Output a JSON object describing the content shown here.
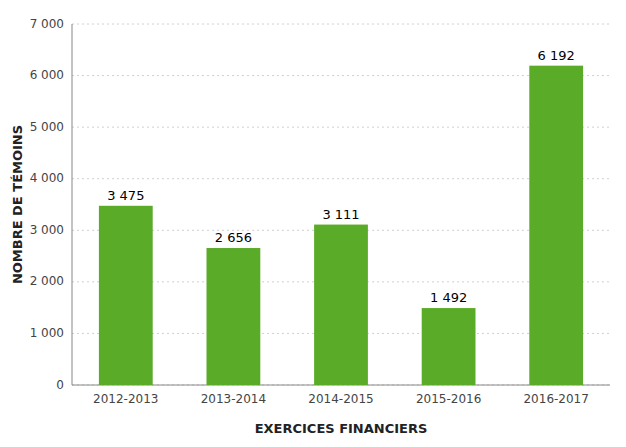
{
  "chart_data": {
    "type": "bar",
    "xlabel": "EXERCICES FINANCIERS",
    "ylabel": "NOMBRE DE TÉMOINS",
    "categories": [
      "2012-2013",
      "2013-2014",
      "2014-2015",
      "2015-2016",
      "2016-2017"
    ],
    "values": [
      3475,
      2656,
      3111,
      1492,
      6192
    ],
    "value_labels": [
      "3 475",
      "2 656",
      "3 111",
      "1 492",
      "6 192"
    ],
    "data_labels": true,
    "color": "#5aab28",
    "ylim": [
      0,
      7000
    ],
    "yticks": [
      0,
      {
        "value": 1000,
        "label": "1 000"
      },
      {
        "value": 2000,
        "label": "2 000"
      },
      {
        "value": 3000,
        "label": "3 000"
      },
      {
        "value": 4000,
        "label": "4 000"
      },
      {
        "value": 5000,
        "label": "5 000"
      },
      {
        "value": 6000,
        "label": "6 000"
      },
      {
        "value": 7000,
        "label": "7 000"
      }
    ],
    "grid": true
  }
}
